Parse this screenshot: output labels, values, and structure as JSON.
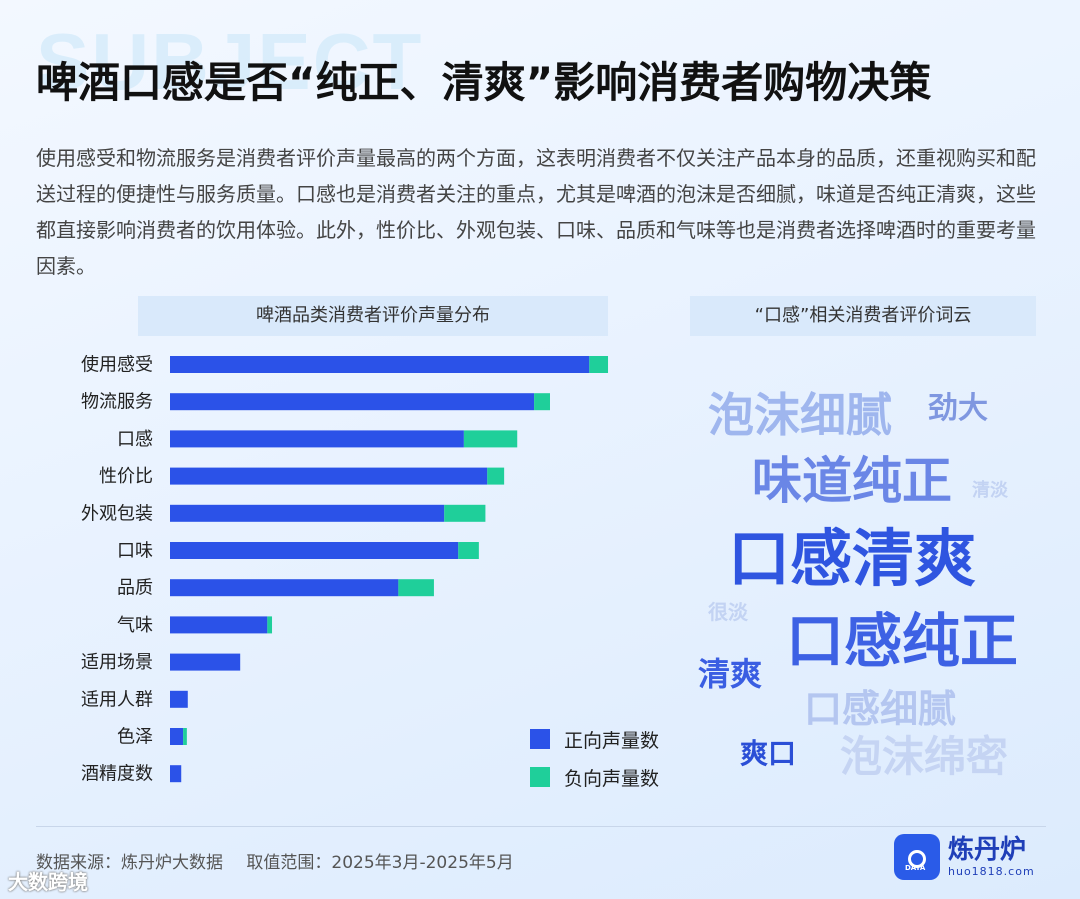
{
  "background_word": "SUBJECT",
  "title": "啤酒口感是否“纯正、清爽”影响消费者购物决策",
  "intro": "使用感受和物流服务是消费者评价声量最高的两个方面，这表明消费者不仅关注产品本身的品质，还重视购买和配送过程的便捷性与服务质量。口感也是消费者关注的重点，尤其是啤酒的泡沫是否细腻，味道是否纯正清爽，这些都直接影响消费者的饮用体验。此外，性价比、外观包装、口味、品质和气味等也是消费者选择啤酒时的重要考量因素。",
  "chart_panel_title": "啤酒品类消费者评价声量分布",
  "cloud_panel_title": "“口感”相关消费者评价词云",
  "colors": {
    "positive": "#2b52e8",
    "negative": "#1fcf9a",
    "panel": "#d9e9fb"
  },
  "chart_data": {
    "type": "bar",
    "orientation": "horizontal",
    "stacked": true,
    "categories": [
      "使用感受",
      "物流服务",
      "口感",
      "性价比",
      "外观包装",
      "口味",
      "品质",
      "气味",
      "适用场景",
      "适用人群",
      "色泽",
      "酒精度数"
    ],
    "series": [
      {
        "name": "正向声量数",
        "values": [
          448,
          389,
          314,
          339,
          293,
          308,
          244,
          104,
          75,
          19,
          14,
          12
        ]
      },
      {
        "name": "负向声量数",
        "values": [
          20,
          17,
          57,
          18,
          44,
          22,
          38,
          5,
          0,
          0,
          4,
          0
        ]
      }
    ],
    "xlim": [
      0,
      470
    ],
    "grid": false,
    "legend_position": "bottom-right"
  },
  "word_cloud": [
    {
      "text": "泡沫细腻",
      "size": 46,
      "color": "#9fb6ee"
    },
    {
      "text": "劲大",
      "size": 30,
      "color": "#7f97e0"
    },
    {
      "text": "味道纯正",
      "size": 50,
      "color": "#6a86e6"
    },
    {
      "text": "清淡",
      "size": 18,
      "color": "#c3d3f3"
    },
    {
      "text": "口感清爽",
      "size": 62,
      "color": "#2f55e0"
    },
    {
      "text": "很淡",
      "size": 20,
      "color": "#c3d3f3"
    },
    {
      "text": "口感纯正",
      "size": 58,
      "color": "#3d61e4"
    },
    {
      "text": "清爽",
      "size": 32,
      "color": "#3a5ee2"
    },
    {
      "text": "口感细腻",
      "size": 38,
      "color": "#b4c6f0"
    },
    {
      "text": "爽口",
      "size": 28,
      "color": "#2b4fd6"
    },
    {
      "text": "泡沫绵密",
      "size": 42,
      "color": "#c5d4f3"
    }
  ],
  "footer": {
    "source": "数据来源：炼丹炉大数据",
    "range": "取值范围：2025年3月-2025年5月"
  },
  "brand": {
    "name": "炼丹炉",
    "url": "huo1818.com",
    "icon_label": "DATA"
  },
  "watermark": "大数跨境"
}
